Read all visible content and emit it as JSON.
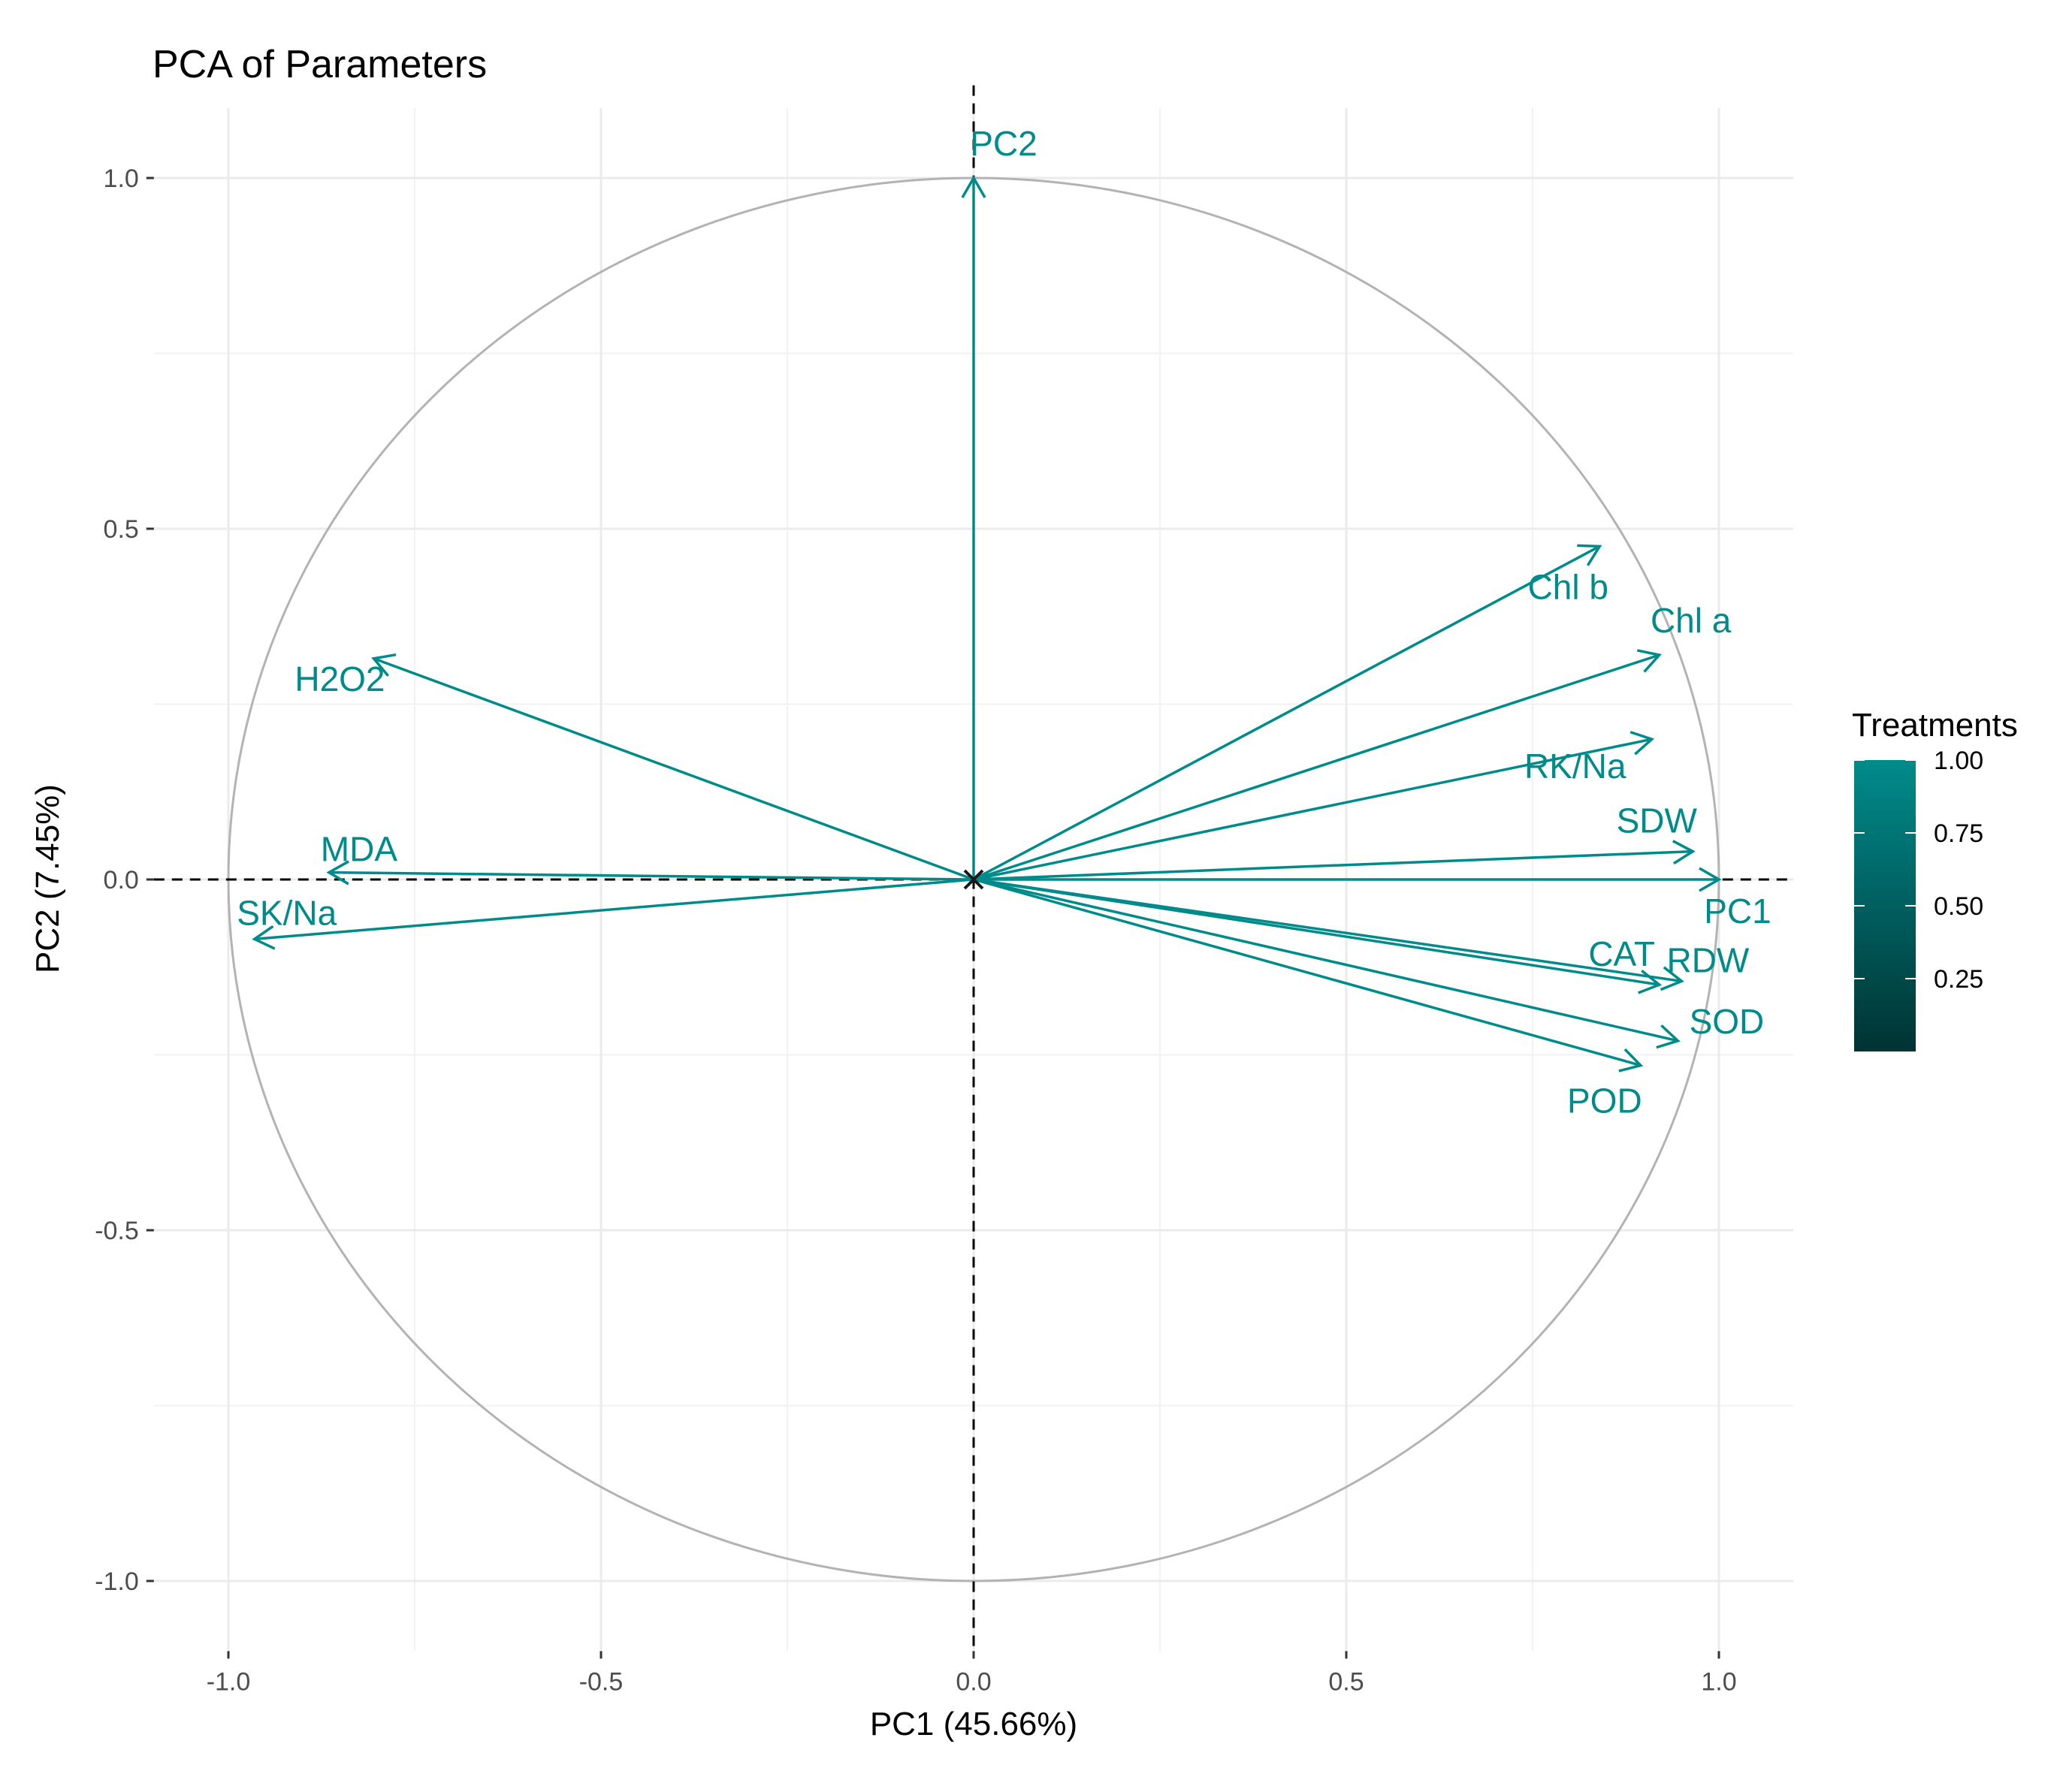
{
  "chart_data": {
    "type": "scatter",
    "subtype": "pca-variable-correlation-circle",
    "title": "PCA of Parameters",
    "xlabel": "PC1 (45.66%)",
    "ylabel": "PC2 (7.45%)",
    "xlim": [
      -1.1,
      1.1
    ],
    "ylim": [
      -1.1,
      1.1
    ],
    "xticks": [
      -1.0,
      -0.5,
      0.0,
      0.5,
      1.0
    ],
    "yticks": [
      -1.0,
      -0.5,
      0.0,
      0.5,
      1.0
    ],
    "xtick_labels": [
      "-1.0",
      "-0.5",
      "0.0",
      "0.5",
      "1.0"
    ],
    "ytick_labels": [
      "-1.0",
      "-0.5",
      "0.0",
      "0.5",
      "1.0"
    ],
    "grid": true,
    "unit_circle": true,
    "color": "#008b8b",
    "vectors": [
      {
        "name": "PC2",
        "x": 0.0,
        "y": 1.0,
        "label": "PC2"
      },
      {
        "name": "Chl b",
        "x": 0.84,
        "y": 0.475,
        "label": "Chl b"
      },
      {
        "name": "Chl a",
        "x": 0.92,
        "y": 0.32,
        "label": "Chl a"
      },
      {
        "name": "RK/Na",
        "x": 0.91,
        "y": 0.2,
        "label": "RK/Na"
      },
      {
        "name": "SDW",
        "x": 0.965,
        "y": 0.04,
        "label": "SDW"
      },
      {
        "name": "PC1",
        "x": 1.0,
        "y": 0.0,
        "label": "PC1"
      },
      {
        "name": "CAT",
        "x": 0.92,
        "y": -0.15,
        "label": "CAT"
      },
      {
        "name": "RDW",
        "x": 0.95,
        "y": -0.145,
        "label": "RDW"
      },
      {
        "name": "SOD",
        "x": 0.945,
        "y": -0.23,
        "label": "SOD"
      },
      {
        "name": "POD",
        "x": 0.895,
        "y": -0.265,
        "label": "POD"
      },
      {
        "name": "H2O2",
        "x": -0.805,
        "y": 0.315,
        "label": "H2O2"
      },
      {
        "name": "MDA",
        "x": -0.865,
        "y": 0.01,
        "label": "MDA"
      },
      {
        "name": "SK/Na",
        "x": -0.965,
        "y": -0.085,
        "label": "SK/Na"
      }
    ],
    "legend": {
      "title": "Treatments",
      "position": "right",
      "range": [
        0,
        1
      ],
      "ticks": [
        "1.00",
        "0.75",
        "0.50",
        "0.25"
      ],
      "tick_values": [
        1.0,
        0.75,
        0.5,
        0.25
      ],
      "color_low": "#003333",
      "color_high": "#008b8b"
    }
  }
}
